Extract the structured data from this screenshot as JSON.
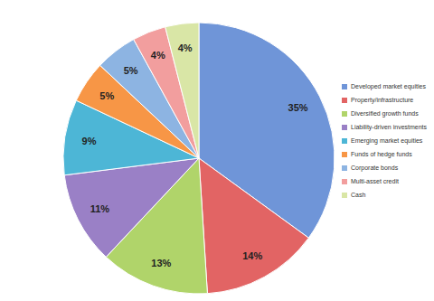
{
  "chart_data": {
    "type": "pie",
    "categories": [
      "Developed market equities",
      "Property/infrastructure",
      "Diversified growth funds",
      "Liability-driven investments",
      "Emerging market equities",
      "Funds of hedge funds",
      "Corporate bonds",
      "Multi-asset credit",
      "Cash"
    ],
    "values": [
      35,
      14,
      13,
      11,
      9,
      5,
      5,
      4,
      4
    ],
    "value_labels": [
      "35%",
      "14%",
      "13%",
      "11%",
      "9%",
      "5%",
      "5%",
      "4%",
      "4%"
    ],
    "colors": [
      "#6F95D8",
      "#E26464",
      "#B0D46A",
      "#9A80C6",
      "#4DB6D6",
      "#F79646",
      "#8DB4E2",
      "#F29E9E",
      "#D9E6A6"
    ],
    "data_labels": true,
    "legend": "right"
  }
}
